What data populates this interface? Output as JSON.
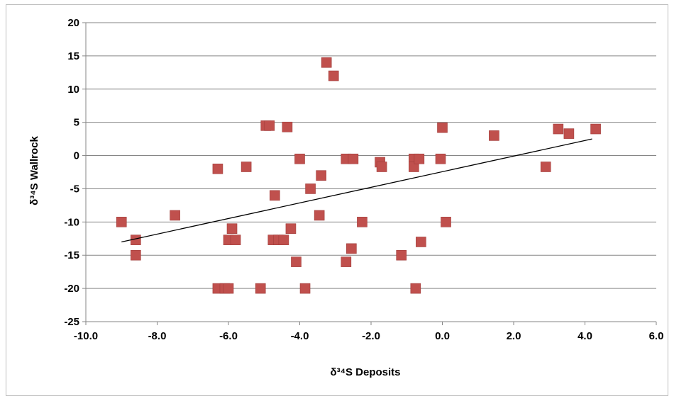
{
  "chart_data": {
    "type": "scatter",
    "xlabel": "δ³⁴S Deposits",
    "ylabel": "δ³⁴S Wallrock",
    "xlim": [
      -10,
      6
    ],
    "ylim": [
      -25,
      20
    ],
    "x_ticks": [
      -10,
      -8,
      -6,
      -4,
      -2,
      0,
      2,
      4,
      6
    ],
    "y_ticks": [
      -25,
      -20,
      -15,
      -10,
      -5,
      0,
      5,
      10,
      15,
      20
    ],
    "x_tick_labels": [
      "-10.0",
      "-8.0",
      "-6.0",
      "-4.0",
      "-2.0",
      "0.0",
      "2.0",
      "4.0",
      "6.0"
    ],
    "y_tick_labels": [
      "-25",
      "-20",
      "-15",
      "-10",
      "-5",
      "0",
      "5",
      "10",
      "15",
      "20"
    ],
    "grid": {
      "horizontal": true,
      "vertical": false
    },
    "legend": "none",
    "marker_color": "#c0504d",
    "trendline_color": "#000000",
    "series": [
      {
        "marker": "square",
        "points": [
          [
            -9.0,
            -10
          ],
          [
            -8.6,
            -12.7
          ],
          [
            -8.6,
            -15
          ],
          [
            -7.5,
            -9
          ],
          [
            -6.3,
            -2
          ],
          [
            -6.3,
            -20
          ],
          [
            -6.1,
            -20
          ],
          [
            -6.0,
            -20
          ],
          [
            -6.0,
            -12.7
          ],
          [
            -5.9,
            -11
          ],
          [
            -5.8,
            -12.7
          ],
          [
            -5.5,
            -1.7
          ],
          [
            -5.1,
            -20
          ],
          [
            -4.95,
            4.5
          ],
          [
            -4.85,
            4.5
          ],
          [
            -4.75,
            -12.7
          ],
          [
            -4.7,
            -6
          ],
          [
            -4.6,
            -12.7
          ],
          [
            -4.45,
            -12.7
          ],
          [
            -4.35,
            4.3
          ],
          [
            -4.25,
            -11
          ],
          [
            -4.1,
            -16
          ],
          [
            -4.0,
            -0.5
          ],
          [
            -3.85,
            -20
          ],
          [
            -3.7,
            -5
          ],
          [
            -3.45,
            -9
          ],
          [
            -3.4,
            -3
          ],
          [
            -3.25,
            14
          ],
          [
            -3.05,
            12
          ],
          [
            -2.7,
            -0.5
          ],
          [
            -2.7,
            -16
          ],
          [
            -2.5,
            -0.5
          ],
          [
            -2.55,
            -14
          ],
          [
            -2.25,
            -10
          ],
          [
            -1.75,
            -1
          ],
          [
            -1.7,
            -1.7
          ],
          [
            -1.15,
            -15
          ],
          [
            -0.8,
            -0.5
          ],
          [
            -0.8,
            -1.7
          ],
          [
            -0.75,
            -20
          ],
          [
            -0.65,
            -0.5
          ],
          [
            -0.6,
            -13
          ],
          [
            -0.05,
            -0.5
          ],
          [
            0.0,
            4.2
          ],
          [
            0.1,
            -10
          ],
          [
            1.45,
            3
          ],
          [
            2.9,
            -1.7
          ],
          [
            3.25,
            4
          ],
          [
            3.55,
            3.3
          ],
          [
            4.3,
            4
          ]
        ]
      }
    ],
    "trendline": {
      "x": [
        -9.0,
        4.2
      ],
      "y": [
        -13,
        2.5
      ]
    }
  }
}
